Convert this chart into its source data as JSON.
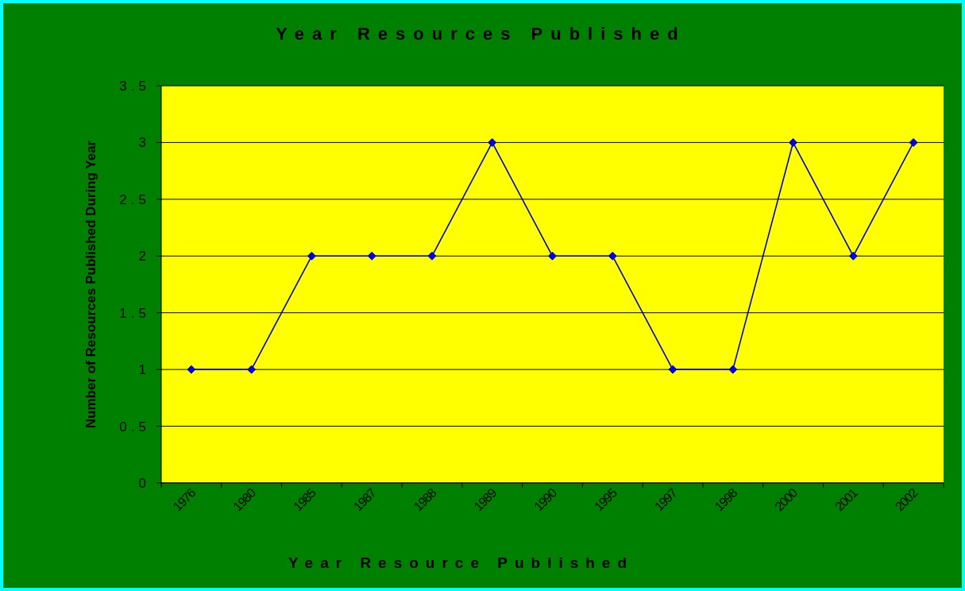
{
  "chart_data": {
    "type": "line",
    "title": "Year Resources Published",
    "xlabel": "Year Resource Published",
    "ylabel": "Number of Resources Published During Year",
    "categories": [
      "1976",
      "1980",
      "1985",
      "1987",
      "1988",
      "1989",
      "1990",
      "1995",
      "1997",
      "1998",
      "2000",
      "2001",
      "2002"
    ],
    "series": [
      {
        "color": "#0000e0",
        "values": [
          1,
          1,
          2,
          2,
          2,
          3,
          2,
          2,
          1,
          1,
          3,
          2,
          3
        ]
      }
    ],
    "ylim": [
      0,
      3.5
    ],
    "yticks": [
      0,
      0.5,
      1,
      1.5,
      2,
      2.5,
      3,
      3.5
    ],
    "grid": "y",
    "marker": "diamond",
    "line_style": "solid"
  }
}
